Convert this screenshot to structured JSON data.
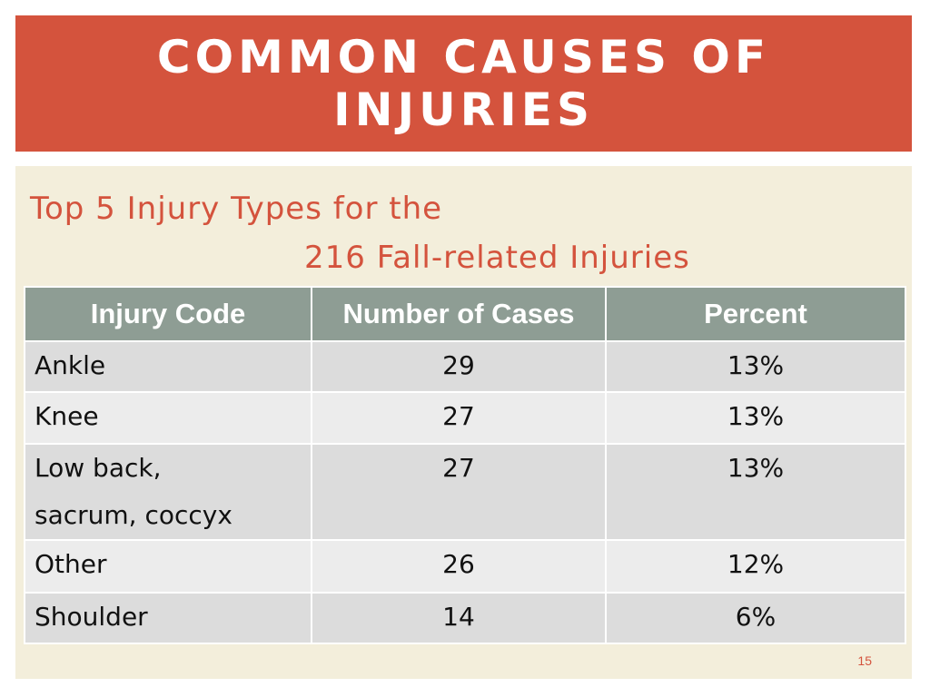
{
  "title": "COMMON CAUSES OF INJURIES",
  "subtitle": {
    "line1": "Top 5 Injury Types for the",
    "line2": "216 Fall-related Injuries"
  },
  "table": {
    "headers": [
      "Injury Code",
      "Number of Cases",
      "Percent"
    ],
    "rows": [
      {
        "code": "Ankle",
        "cases": "29",
        "percent": "13%"
      },
      {
        "code": "Knee",
        "cases": "27",
        "percent": "13%"
      },
      {
        "code": "Low back, sacrum, coccyx",
        "cases": "27",
        "percent": "13%"
      },
      {
        "code": "Other",
        "cases": "26",
        "percent": "12%"
      },
      {
        "code": "Shoulder",
        "cases": "14",
        "percent": "6%"
      }
    ]
  },
  "page_number": "15",
  "colors": {
    "accent": "#d4533d",
    "header_fill": "#8e9d94",
    "content_bg": "#f3eedb"
  }
}
